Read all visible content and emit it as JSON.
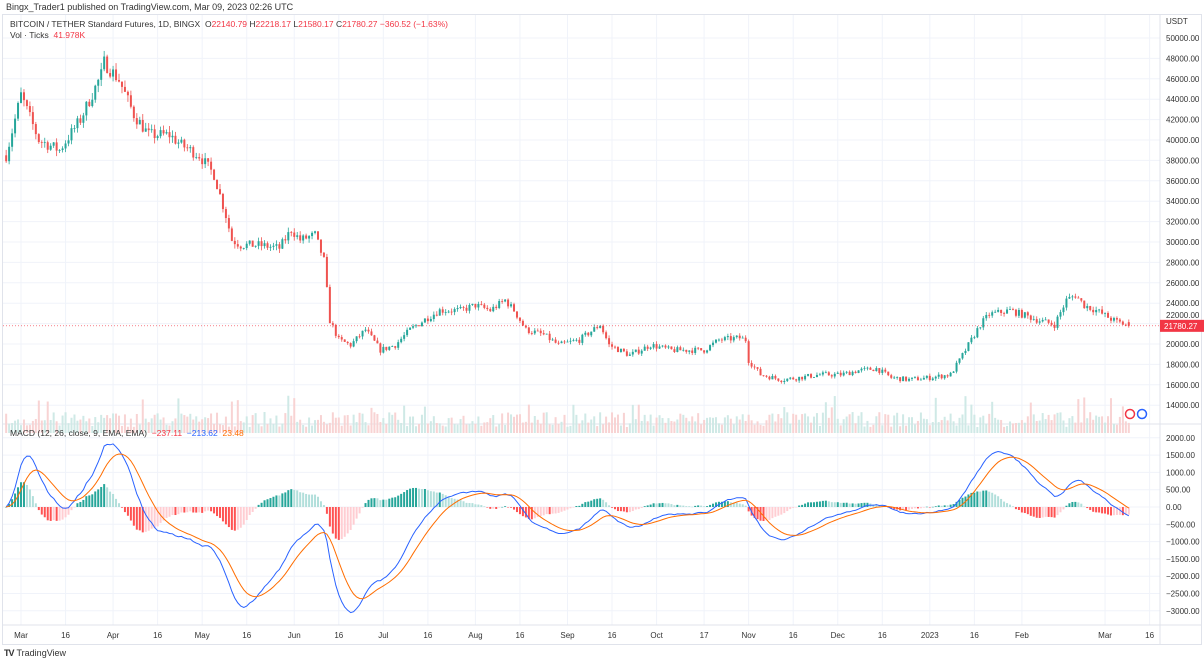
{
  "published": "Bingx_Trader1 published on TradingView.com, Mar 09, 2023 02:26 UTC",
  "symbol": "BITCOIN / TETHER Standard Futures, 1D, BINGX",
  "ohlc": {
    "o_label": "O",
    "o": "22140.79",
    "h_label": "H",
    "h": "22218.17",
    "l_label": "L",
    "l": "21580.17",
    "c_label": "C",
    "c": "21780.27",
    "change": "−360.52 (−1.63%)"
  },
  "volume": {
    "label": "Vol · Ticks",
    "value": "41.978K"
  },
  "macd_legend": {
    "label": "MACD (12, 26, close, 9, EMA, EMA)",
    "hist": "−237.11",
    "macd": "−213.62",
    "signal": "23.48"
  },
  "last_price_label": "21780.27",
  "logo_text": "TradingView",
  "colors": {
    "up": "#26a69a",
    "down": "#ef5350",
    "macd": "#2962ff",
    "signal": "#ff6d00",
    "hist_up": "#26a69a",
    "hist_up_light": "#b2dfdb",
    "hist_down": "#ff5252",
    "hist_down_light": "#ffcdd2"
  },
  "chart_data": {
    "type": "candlestick",
    "currency": "USDT",
    "price_ticks": [
      "50000.00",
      "48000.00",
      "46000.00",
      "44000.00",
      "42000.00",
      "40000.00",
      "38000.00",
      "36000.00",
      "34000.00",
      "32000.00",
      "30000.00",
      "28000.00",
      "26000.00",
      "24000.00",
      "22000.00",
      "20000.00",
      "18000.00",
      "16000.00",
      "14000.00"
    ],
    "macd_ticks": [
      "2000.00",
      "1500.00",
      "1000.00",
      "500.00",
      "0.00",
      "−500.00",
      "−1000.00",
      "−1500.00",
      "−2000.00",
      "−2500.00",
      "−3000.00"
    ],
    "time_ticks": [
      [
        "Mar",
        0
      ],
      [
        "16",
        15
      ],
      [
        "Apr",
        31
      ],
      [
        "16",
        46
      ],
      [
        "May",
        61
      ],
      [
        "16",
        76
      ],
      [
        "Jun",
        92
      ],
      [
        "16",
        107
      ],
      [
        "Jul",
        122
      ],
      [
        "16",
        137
      ],
      [
        "Aug",
        153
      ],
      [
        "16",
        168
      ],
      [
        "Sep",
        184
      ],
      [
        "16",
        199
      ],
      [
        "Oct",
        214
      ],
      [
        "17",
        230
      ],
      [
        "Nov",
        245
      ],
      [
        "16",
        260
      ],
      [
        "Dec",
        275
      ],
      [
        "16",
        290
      ],
      [
        "2023",
        306
      ],
      [
        "16",
        321
      ],
      [
        "Feb",
        337
      ],
      [
        "Mar",
        365
      ],
      [
        "16",
        380
      ]
    ],
    "close_anchors_day_from_mar1_2022": [
      [
        -5,
        38500
      ],
      [
        0,
        44400
      ],
      [
        6,
        40000
      ],
      [
        13,
        39000
      ],
      [
        20,
        42000
      ],
      [
        27,
        46400
      ],
      [
        28,
        47600
      ],
      [
        33,
        45900
      ],
      [
        38,
        42500
      ],
      [
        43,
        40500
      ],
      [
        50,
        40500
      ],
      [
        54,
        39500
      ],
      [
        60,
        38500
      ],
      [
        65,
        36600
      ],
      [
        69,
        32600
      ],
      [
        71,
        30200
      ],
      [
        74,
        29700
      ],
      [
        80,
        29700
      ],
      [
        87,
        29400
      ],
      [
        91,
        31200
      ],
      [
        94,
        30200
      ],
      [
        99,
        30700
      ],
      [
        102,
        28200
      ],
      [
        104,
        22300
      ],
      [
        107,
        20400
      ],
      [
        111,
        19900
      ],
      [
        116,
        21400
      ],
      [
        121,
        19400
      ],
      [
        126,
        19900
      ],
      [
        131,
        21400
      ],
      [
        136,
        22400
      ],
      [
        141,
        23300
      ],
      [
        148,
        23300
      ],
      [
        153,
        23800
      ],
      [
        158,
        23300
      ],
      [
        163,
        24300
      ],
      [
        166,
        23300
      ],
      [
        170,
        21400
      ],
      [
        176,
        20900
      ],
      [
        181,
        19900
      ],
      [
        188,
        20400
      ],
      [
        195,
        21900
      ],
      [
        198,
        19900
      ],
      [
        205,
        18900
      ],
      [
        212,
        19900
      ],
      [
        219,
        19400
      ],
      [
        225,
        19400
      ],
      [
        230,
        19400
      ],
      [
        235,
        20400
      ],
      [
        242,
        20600
      ],
      [
        244,
        20400
      ],
      [
        245,
        18400
      ],
      [
        249,
        17000
      ],
      [
        256,
        16500
      ],
      [
        262,
        16700
      ],
      [
        269,
        17000
      ],
      [
        276,
        17000
      ],
      [
        282,
        17400
      ],
      [
        288,
        17600
      ],
      [
        293,
        16700
      ],
      [
        299,
        16500
      ],
      [
        306,
        16700
      ],
      [
        313,
        17000
      ],
      [
        316,
        18400
      ],
      [
        320,
        20400
      ],
      [
        323,
        21900
      ],
      [
        326,
        22900
      ],
      [
        333,
        23300
      ],
      [
        338,
        22800
      ],
      [
        343,
        22300
      ],
      [
        348,
        21900
      ],
      [
        352,
        24300
      ],
      [
        355,
        24800
      ],
      [
        358,
        23800
      ],
      [
        362,
        23300
      ],
      [
        365,
        22800
      ],
      [
        368,
        22300
      ],
      [
        373,
        21780.27
      ]
    ]
  }
}
